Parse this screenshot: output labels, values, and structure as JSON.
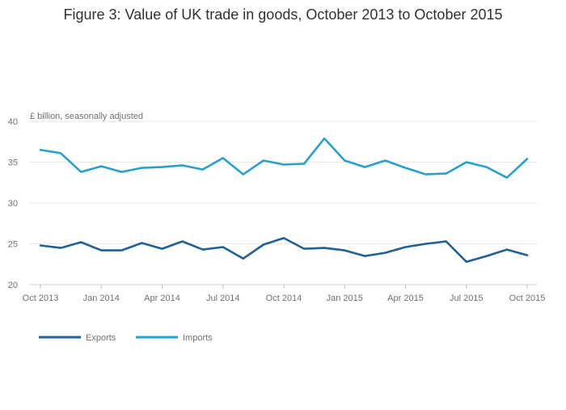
{
  "chart_data": {
    "type": "line",
    "title": "Figure 3: Value of UK trade in goods, October 2013 to October 2015",
    "unit_label": "£ billion, seasonally adjusted",
    "xlabel": "",
    "ylabel": "£ billion, seasonally adjusted",
    "ylim": [
      20,
      40
    ],
    "yticks": [
      20,
      25,
      30,
      35,
      40
    ],
    "grid": true,
    "legend_position": "bottom-left",
    "x_count": 25,
    "x_ticks": [
      {
        "index": 0,
        "label": "Oct 2013"
      },
      {
        "index": 3,
        "label": "Jan 2014"
      },
      {
        "index": 6,
        "label": "Apr 2014"
      },
      {
        "index": 9,
        "label": "Jul 2014"
      },
      {
        "index": 12,
        "label": "Oct 2014"
      },
      {
        "index": 15,
        "label": "Jan 2015"
      },
      {
        "index": 18,
        "label": "Apr 2015"
      },
      {
        "index": 21,
        "label": "Jul 2015"
      },
      {
        "index": 24,
        "label": "Oct 2015"
      }
    ],
    "series": [
      {
        "name": "Exports",
        "color": "#206095",
        "values": [
          24.8,
          24.5,
          25.2,
          24.2,
          24.2,
          25.1,
          24.4,
          25.3,
          24.3,
          24.6,
          23.2,
          24.9,
          25.7,
          24.4,
          24.5,
          24.2,
          23.5,
          23.9,
          24.6,
          25.0,
          25.3,
          22.8,
          23.5,
          24.3,
          23.6
        ]
      },
      {
        "name": "Imports",
        "color": "#27a0cc",
        "values": [
          36.5,
          36.1,
          33.8,
          34.5,
          33.8,
          34.3,
          34.4,
          34.6,
          34.1,
          35.5,
          33.5,
          35.2,
          34.7,
          34.8,
          37.9,
          35.2,
          34.4,
          35.2,
          34.3,
          33.5,
          33.6,
          35.0,
          34.4,
          33.1,
          35.4
        ]
      }
    ]
  }
}
